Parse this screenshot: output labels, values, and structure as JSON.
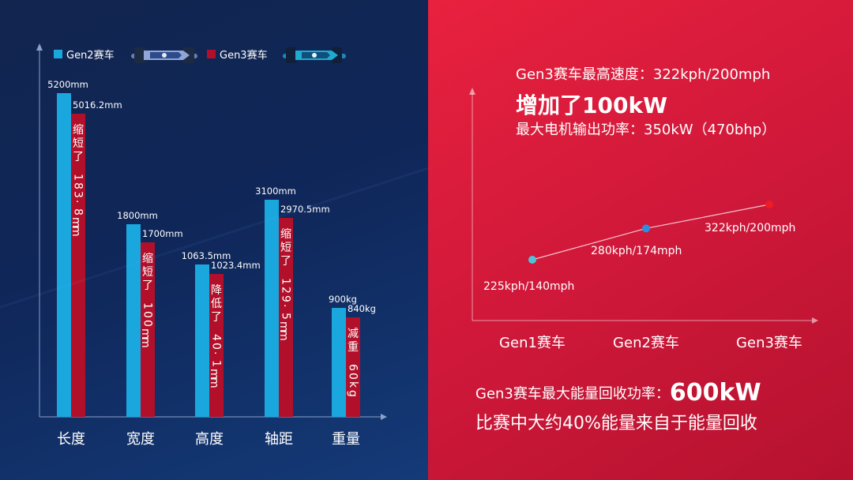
{
  "left_chart": {
    "legend": [
      {
        "name": "Gen2赛车",
        "color": "#1aa7de"
      },
      {
        "name": "Gen3赛车",
        "color": "#b2102a"
      }
    ],
    "chart_data": {
      "type": "bar",
      "categories": [
        "长度",
        "宽度",
        "高度",
        "轴距",
        "重量"
      ],
      "series": [
        {
          "name": "Gen2赛车",
          "labels": [
            "5200mm",
            "1800mm",
            "1063.5mm",
            "3100mm",
            "900kg"
          ]
        },
        {
          "name": "Gen3赛车",
          "labels": [
            "5016.2mm",
            "1700mm",
            "1023.4mm",
            "2970.5mm",
            "840kg"
          ]
        }
      ],
      "annotations": [
        "缩短了183.8mm",
        "缩短了100mm",
        "降低了40.1mm",
        "缩短了129.5mm",
        "减重60kg"
      ]
    }
  },
  "right_panel": {
    "speed_line": "Gen3赛车最高速度：322kph/200mph",
    "power_big": "增加了100kW",
    "power_line": "最大电机输出功率：350kW（470bhp）",
    "chart_data": {
      "type": "line",
      "categories": [
        "Gen1赛车",
        "Gen2赛车",
        "Gen3赛车"
      ],
      "values": [
        140,
        174,
        200
      ],
      "labels": [
        "225kph/140mph",
        "280kph/174mph",
        "322kph/200mph"
      ],
      "point_colors": [
        "#4fc3d9",
        "#2a8fe0",
        "#ee1c25"
      ]
    },
    "regen_prefix": "Gen3赛车最大能量回收功率：",
    "regen_value": "600kW",
    "regen_line": "比赛中大约40%能量来自于能量回收"
  }
}
